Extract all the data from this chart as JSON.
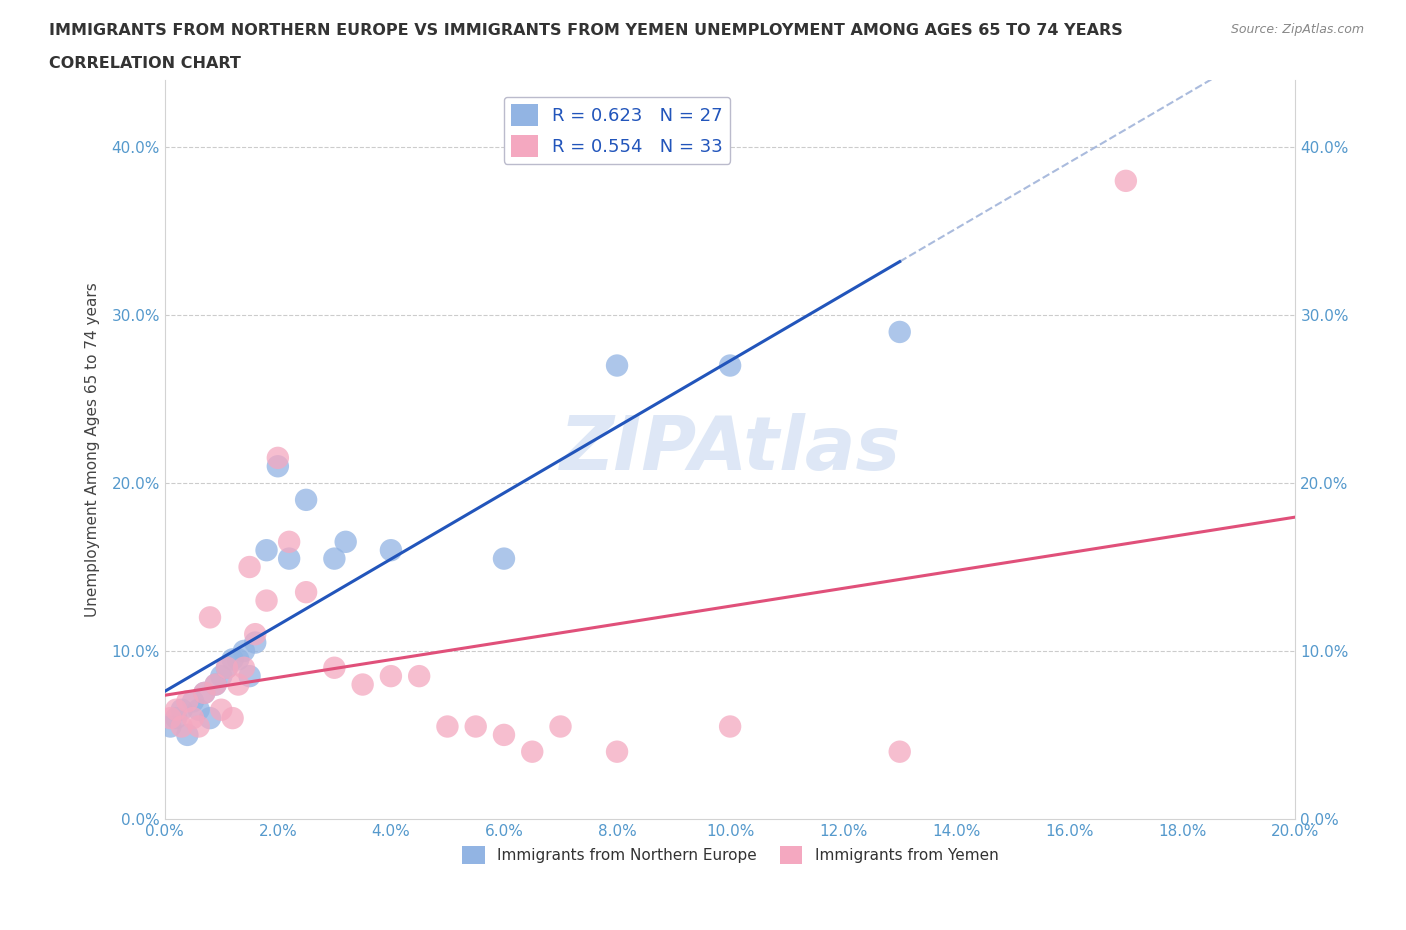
{
  "title_line1": "IMMIGRANTS FROM NORTHERN EUROPE VS IMMIGRANTS FROM YEMEN UNEMPLOYMENT AMONG AGES 65 TO 74 YEARS",
  "title_line2": "CORRELATION CHART",
  "source": "Source: ZipAtlas.com",
  "ylabel": "Unemployment Among Ages 65 to 74 years",
  "xlim": [
    0.0,
    0.2
  ],
  "ylim": [
    0.0,
    0.44
  ],
  "xticks": [
    0.0,
    0.02,
    0.04,
    0.06,
    0.08,
    0.1,
    0.12,
    0.14,
    0.16,
    0.18,
    0.2
  ],
  "yticks": [
    0.0,
    0.1,
    0.2,
    0.3,
    0.4
  ],
  "blue_R": 0.623,
  "blue_N": 27,
  "pink_R": 0.554,
  "pink_N": 33,
  "blue_color": "#92b4e3",
  "pink_color": "#f4a8c0",
  "blue_line_color": "#2255bb",
  "pink_line_color": "#e0507a",
  "legend_label_blue": "Immigrants from Northern Europe",
  "legend_label_pink": "Immigrants from Yemen",
  "watermark": "ZIPAtlas",
  "blue_points": [
    [
      0.001,
      0.055
    ],
    [
      0.002,
      0.06
    ],
    [
      0.003,
      0.065
    ],
    [
      0.004,
      0.05
    ],
    [
      0.005,
      0.07
    ],
    [
      0.006,
      0.065
    ],
    [
      0.007,
      0.075
    ],
    [
      0.008,
      0.06
    ],
    [
      0.009,
      0.08
    ],
    [
      0.01,
      0.085
    ],
    [
      0.011,
      0.09
    ],
    [
      0.012,
      0.095
    ],
    [
      0.013,
      0.095
    ],
    [
      0.014,
      0.1
    ],
    [
      0.015,
      0.085
    ],
    [
      0.016,
      0.105
    ],
    [
      0.018,
      0.16
    ],
    [
      0.02,
      0.21
    ],
    [
      0.022,
      0.155
    ],
    [
      0.025,
      0.19
    ],
    [
      0.03,
      0.155
    ],
    [
      0.032,
      0.165
    ],
    [
      0.04,
      0.16
    ],
    [
      0.06,
      0.155
    ],
    [
      0.08,
      0.27
    ],
    [
      0.1,
      0.27
    ],
    [
      0.13,
      0.29
    ]
  ],
  "pink_points": [
    [
      0.001,
      0.06
    ],
    [
      0.002,
      0.065
    ],
    [
      0.003,
      0.055
    ],
    [
      0.004,
      0.07
    ],
    [
      0.005,
      0.06
    ],
    [
      0.006,
      0.055
    ],
    [
      0.007,
      0.075
    ],
    [
      0.008,
      0.12
    ],
    [
      0.009,
      0.08
    ],
    [
      0.01,
      0.065
    ],
    [
      0.011,
      0.09
    ],
    [
      0.012,
      0.06
    ],
    [
      0.013,
      0.08
    ],
    [
      0.014,
      0.09
    ],
    [
      0.015,
      0.15
    ],
    [
      0.016,
      0.11
    ],
    [
      0.018,
      0.13
    ],
    [
      0.02,
      0.215
    ],
    [
      0.022,
      0.165
    ],
    [
      0.025,
      0.135
    ],
    [
      0.03,
      0.09
    ],
    [
      0.035,
      0.08
    ],
    [
      0.04,
      0.085
    ],
    [
      0.045,
      0.085
    ],
    [
      0.05,
      0.055
    ],
    [
      0.055,
      0.055
    ],
    [
      0.06,
      0.05
    ],
    [
      0.065,
      0.04
    ],
    [
      0.07,
      0.055
    ],
    [
      0.08,
      0.04
    ],
    [
      0.1,
      0.055
    ],
    [
      0.13,
      0.04
    ],
    [
      0.17,
      0.38
    ]
  ]
}
